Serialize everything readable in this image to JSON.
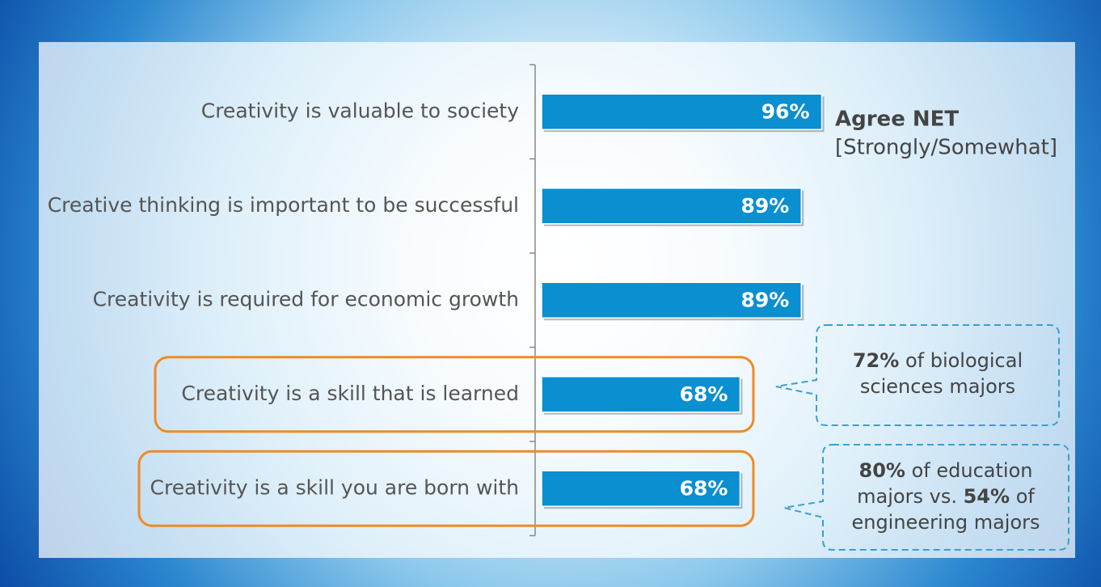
{
  "chart_data": {
    "type": "bar",
    "orientation": "horizontal",
    "categories": [
      "Creativity is valuable to society",
      "Creative thinking is important to be successful",
      "Creativity is required for economic growth",
      "Creativity is a skill that is learned",
      "Creativity is a skill you are born with"
    ],
    "values": [
      96,
      89,
      89,
      68,
      68
    ],
    "value_labels": [
      "96%",
      "89%",
      "89%",
      "68%",
      "68%"
    ],
    "color": "#0a8fd0",
    "highlighted": [
      false,
      false,
      false,
      true,
      true
    ],
    "highlight_color": "#f08a24",
    "legend": {
      "title": "Agree NET",
      "subtitle": "[Strongly/Somewhat]"
    },
    "callouts": [
      {
        "bold": "72%",
        "text": "of biological sciences majors"
      },
      {
        "bold": "80%",
        "text": "of education majors vs.",
        "bold2": "54%",
        "text2": "of engineering majors"
      }
    ]
  }
}
